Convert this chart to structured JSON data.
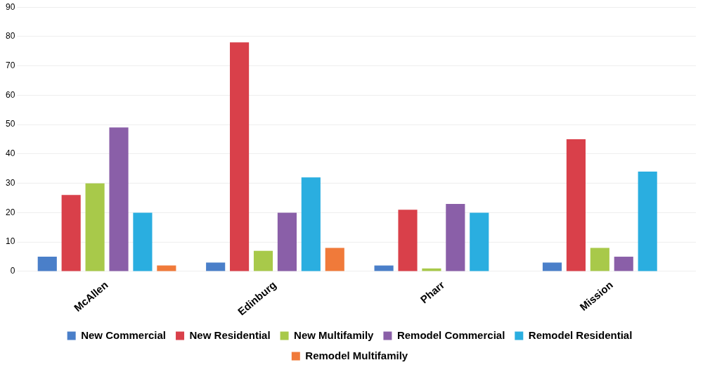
{
  "chart_data": {
    "type": "bar",
    "categories": [
      "McAllen",
      "Edinburg",
      "Pharr",
      "Mission"
    ],
    "series": [
      {
        "name": "New Commercial",
        "color": "#4a7fc9",
        "values": [
          5,
          3,
          2,
          3
        ]
      },
      {
        "name": "New Residential",
        "color": "#d9404a",
        "values": [
          26,
          78,
          21,
          45
        ]
      },
      {
        "name": "New Multifamily",
        "color": "#a8c94a",
        "values": [
          30,
          7,
          1,
          8
        ]
      },
      {
        "name": "Remodel Commercial",
        "color": "#8a5fa8",
        "values": [
          49,
          20,
          23,
          5
        ]
      },
      {
        "name": "Remodel Residential",
        "color": "#2aaee0",
        "values": [
          20,
          32,
          20,
          34
        ]
      },
      {
        "name": "Remodel Multifamily",
        "color": "#f07a3a",
        "values": [
          2,
          8,
          null,
          null
        ]
      }
    ],
    "ylim": [
      0,
      90
    ],
    "yticks": [
      0,
      10,
      20,
      30,
      40,
      50,
      60,
      70,
      80,
      90
    ],
    "grid": "y",
    "legend": "bottom"
  }
}
